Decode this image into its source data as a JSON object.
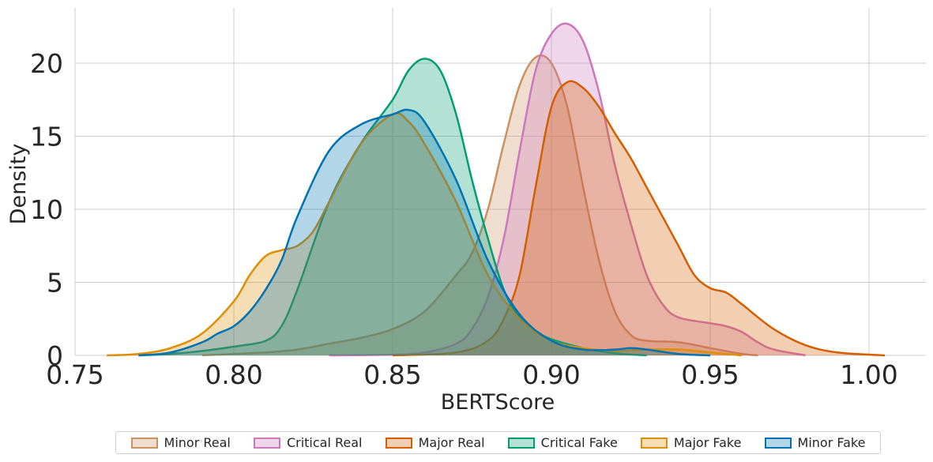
{
  "chart_data": {
    "type": "area",
    "title": "",
    "xlabel": "BERTScore",
    "ylabel": "Density",
    "xlim": [
      0.75,
      1.0
    ],
    "ylim": [
      0,
      23
    ],
    "xticks": [
      "0.75",
      "0.80",
      "0.85",
      "0.90",
      "0.95",
      "1.00"
    ],
    "yticks": [
      "0",
      "5",
      "10",
      "15",
      "20"
    ],
    "grid": true,
    "legend_position": "bottom-center",
    "series": [
      {
        "name": "Minor Real",
        "color": "#ca9161",
        "x": [
          0.79,
          0.8,
          0.81,
          0.82,
          0.83,
          0.84,
          0.85,
          0.86,
          0.87,
          0.875,
          0.88,
          0.885,
          0.89,
          0.895,
          0.9,
          0.905,
          0.91,
          0.915,
          0.92,
          0.925,
          0.93,
          0.94,
          0.95,
          0.96,
          0.965
        ],
        "y": [
          0.0,
          0.1,
          0.2,
          0.4,
          0.8,
          1.2,
          1.8,
          3.0,
          5.5,
          7.0,
          10.0,
          14.5,
          18.5,
          20.4,
          20.0,
          17.0,
          11.5,
          6.5,
          3.0,
          1.4,
          1.0,
          0.9,
          0.5,
          0.1,
          0.0
        ]
      },
      {
        "name": "Critical Real",
        "color": "#cc78bc",
        "x": [
          0.83,
          0.85,
          0.86,
          0.87,
          0.875,
          0.88,
          0.885,
          0.89,
          0.895,
          0.9,
          0.905,
          0.91,
          0.915,
          0.92,
          0.925,
          0.93,
          0.935,
          0.94,
          0.95,
          0.955,
          0.96,
          0.965,
          0.97,
          0.98
        ],
        "y": [
          0.0,
          0.05,
          0.2,
          0.8,
          1.8,
          4.0,
          8.0,
          14.0,
          19.5,
          22.0,
          22.7,
          21.5,
          18.0,
          13.0,
          9.0,
          5.5,
          3.5,
          2.6,
          2.2,
          2.0,
          1.6,
          0.9,
          0.4,
          0.0
        ]
      },
      {
        "name": "Major Real",
        "color": "#d55e00",
        "x": [
          0.85,
          0.87,
          0.88,
          0.885,
          0.89,
          0.895,
          0.9,
          0.905,
          0.91,
          0.915,
          0.92,
          0.925,
          0.93,
          0.935,
          0.94,
          0.945,
          0.95,
          0.955,
          0.96,
          0.97,
          0.98,
          0.99,
          1.005
        ],
        "y": [
          0.0,
          0.2,
          1.0,
          2.5,
          5.5,
          11.5,
          17.0,
          18.7,
          18.3,
          17.0,
          15.2,
          13.5,
          11.5,
          9.5,
          7.5,
          5.5,
          4.6,
          4.3,
          3.5,
          1.8,
          0.7,
          0.2,
          0.0
        ]
      },
      {
        "name": "Critical Fake",
        "color": "#029e73",
        "x": [
          0.77,
          0.78,
          0.79,
          0.8,
          0.81,
          0.815,
          0.82,
          0.83,
          0.84,
          0.85,
          0.855,
          0.86,
          0.865,
          0.87,
          0.875,
          0.88,
          0.885,
          0.89,
          0.895,
          0.9,
          0.91,
          0.92,
          0.93
        ],
        "y": [
          0.0,
          0.1,
          0.3,
          0.6,
          1.0,
          2.0,
          4.5,
          10.5,
          14.5,
          17.5,
          19.5,
          20.3,
          19.5,
          16.5,
          12.0,
          8.0,
          4.5,
          2.6,
          1.7,
          1.1,
          0.5,
          0.15,
          0.0
        ]
      },
      {
        "name": "Major Fake",
        "color": "#de8f05",
        "x": [
          0.76,
          0.77,
          0.78,
          0.79,
          0.8,
          0.805,
          0.81,
          0.815,
          0.82,
          0.825,
          0.83,
          0.84,
          0.85,
          0.855,
          0.86,
          0.87,
          0.88,
          0.89,
          0.9,
          0.91,
          0.92,
          0.93,
          0.94,
          0.95,
          0.96
        ],
        "y": [
          0.0,
          0.1,
          0.5,
          1.5,
          3.7,
          5.5,
          6.8,
          7.2,
          7.5,
          8.5,
          10.5,
          14.5,
          16.5,
          16.0,
          14.5,
          10.5,
          5.5,
          2.5,
          1.0,
          0.5,
          0.3,
          0.4,
          0.4,
          0.2,
          0.0
        ]
      },
      {
        "name": "Minor Fake",
        "color": "#0173b2",
        "x": [
          0.77,
          0.78,
          0.79,
          0.795,
          0.8,
          0.805,
          0.81,
          0.815,
          0.82,
          0.83,
          0.84,
          0.85,
          0.855,
          0.86,
          0.87,
          0.88,
          0.89,
          0.9,
          0.91,
          0.92,
          0.925,
          0.93,
          0.94,
          0.95
        ],
        "y": [
          0.0,
          0.2,
          0.9,
          1.5,
          2.0,
          3.0,
          4.5,
          6.5,
          9.5,
          14.0,
          15.8,
          16.5,
          16.8,
          16.0,
          12.0,
          6.5,
          2.8,
          1.0,
          0.4,
          0.4,
          0.5,
          0.4,
          0.1,
          0.0
        ]
      }
    ]
  },
  "legend": {
    "items": [
      {
        "label": "Minor Real",
        "color": "#ca9161"
      },
      {
        "label": "Critical Real",
        "color": "#cc78bc"
      },
      {
        "label": "Major Real",
        "color": "#d55e00"
      },
      {
        "label": "Critical Fake",
        "color": "#029e73"
      },
      {
        "label": "Major Fake",
        "color": "#de8f05"
      },
      {
        "label": "Minor Fake",
        "color": "#0173b2"
      }
    ]
  }
}
